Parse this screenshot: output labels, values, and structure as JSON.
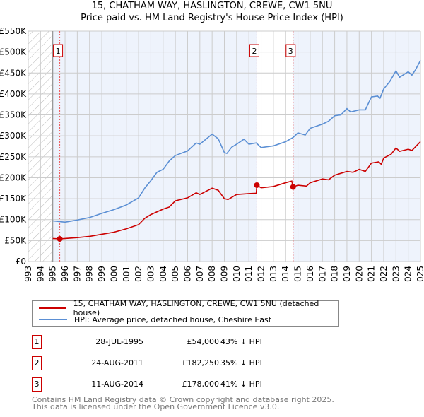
{
  "title_line1": "15, CHATHAM WAY, HASLINGTON, CREWE, CW1 5NU",
  "title_line2": "Price paid vs. HM Land Registry's House Price Index (HPI)",
  "chart_data": {
    "type": "line",
    "title": "15, CHATHAM WAY, HASLINGTON, CREWE, CW1 5NU — Price paid vs. HM Land Registry's House Price Index (HPI)",
    "xlim": [
      1993,
      2025
    ],
    "ylim": [
      0,
      550000
    ],
    "ytick_labels": [
      "£0",
      "£50K",
      "£100K",
      "£150K",
      "£200K",
      "£250K",
      "£300K",
      "£350K",
      "£400K",
      "£450K",
      "£500K",
      "£550K"
    ],
    "xtick_labels": [
      "1993",
      "1994",
      "1995",
      "1996",
      "1997",
      "1998",
      "1999",
      "2000",
      "2001",
      "2002",
      "2003",
      "2004",
      "2005",
      "2006",
      "2007",
      "2008",
      "2009",
      "2010",
      "2011",
      "2012",
      "2013",
      "2014",
      "2015",
      "2016",
      "2017",
      "2018",
      "2019",
      "2020",
      "2021",
      "2022",
      "2023",
      "2024",
      "2025"
    ],
    "series": [
      {
        "name": "15, CHATHAM WAY, HASLINGTON, CREWE, CW1 5NU (detached house)",
        "color": "#cc0000",
        "x": [
          1995,
          1995.57,
          1996,
          1997,
          1998,
          1999,
          2000,
          2001,
          2002,
          2002.5,
          2003,
          2004,
          2004.5,
          2005,
          2006,
          2006.7,
          2007,
          2008,
          2008.5,
          2009,
          2009.3,
          2010,
          2011,
          2011.6,
          2011.65,
          2012,
          2013,
          2014,
          2014.5,
          2014.6,
          2015,
          2015.7,
          2016,
          2017,
          2017.5,
          2018,
          2019,
          2019.5,
          2020,
          2020.5,
          2021,
          2021.6,
          2021.8,
          2022,
          2022.6,
          2023,
          2023.3,
          2024,
          2024.3,
          2025
        ],
        "y": [
          55,
          54,
          55,
          57,
          60,
          65,
          70,
          78,
          88,
          103,
          112,
          125,
          130,
          145,
          152,
          164,
          160,
          175,
          170,
          150,
          148,
          160,
          162,
          163,
          182,
          176,
          179,
          188,
          192,
          178,
          182,
          180,
          188,
          197,
          195,
          206,
          215,
          213,
          220,
          215,
          235,
          238,
          232,
          247,
          256,
          271,
          263,
          268,
          265,
          286
        ]
      },
      {
        "name": "HPI: Average price, detached house, Cheshire East",
        "color": "#5b8fd4",
        "x": [
          1995,
          1996,
          1997,
          1998,
          1999,
          2000,
          2001,
          2002,
          2002.5,
          2003,
          2003.5,
          2004,
          2004.5,
          2005,
          2006,
          2006.7,
          2007,
          2007.5,
          2008,
          2008.5,
          2009,
          2009.2,
          2009.6,
          2010,
          2010.6,
          2011,
          2011.6,
          2012,
          2013,
          2014,
          2014.6,
          2015,
          2015.6,
          2016,
          2017,
          2017.5,
          2018,
          2018.5,
          2019,
          2019.3,
          2020,
          2020.5,
          2021,
          2021.5,
          2021.7,
          2022,
          2022.5,
          2023,
          2023.3,
          2024,
          2024.3,
          2024.6,
          2025
        ],
        "y": [
          97,
          94,
          99,
          105,
          115,
          124,
          135,
          152,
          175,
          193,
          213,
          220,
          240,
          253,
          264,
          283,
          280,
          292,
          304,
          293,
          260,
          258,
          273,
          280,
          292,
          280,
          283,
          272,
          276,
          286,
          296,
          307,
          302,
          318,
          328,
          335,
          348,
          350,
          365,
          357,
          362,
          362,
          393,
          395,
          390,
          412,
          430,
          455,
          440,
          453,
          445,
          458,
          480
        ]
      }
    ],
    "y_units": "£K",
    "sales": [
      {
        "id": "1",
        "date": "28-JUL-1995",
        "price": "£54,000",
        "hpi": "43% ↓ HPI",
        "x": 1995.57,
        "y": 54
      },
      {
        "id": "2",
        "date": "24-AUG-2011",
        "price": "£182,250",
        "hpi": "35% ↓ HPI",
        "x": 2011.65,
        "y": 182.25
      },
      {
        "id": "3",
        "date": "11-AUG-2014",
        "price": "£178,000",
        "hpi": "41% ↓ HPI",
        "x": 2014.61,
        "y": 178
      }
    ]
  },
  "legend": [
    "15, CHATHAM WAY, HASLINGTON, CREWE, CW1 5NU (detached house)",
    "HPI: Average price, detached house, Cheshire East"
  ],
  "footer": [
    "Contains HM Land Registry data © Crown copyright and database right 2025.",
    "This data is licensed under the Open Government Licence v3.0."
  ]
}
